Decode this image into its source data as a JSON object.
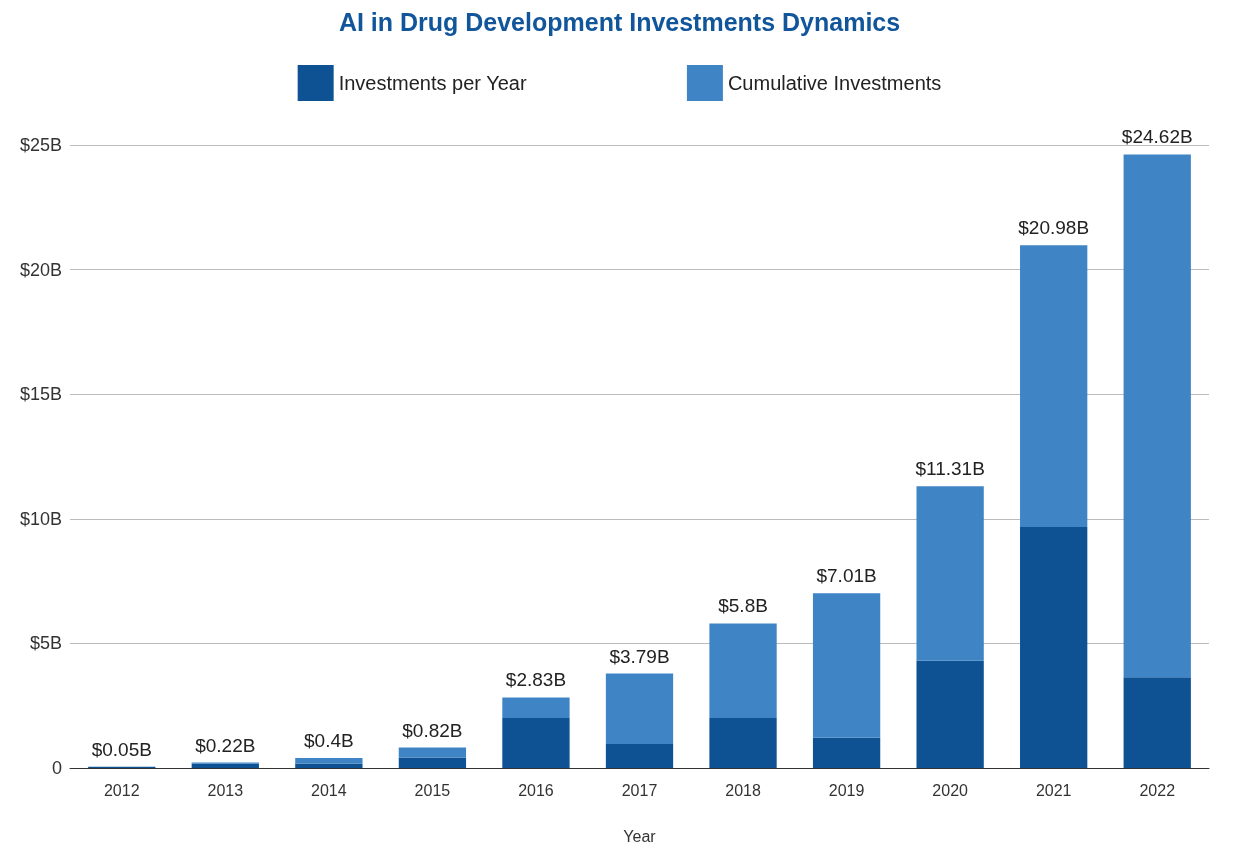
{
  "chart_data": {
    "type": "bar",
    "title": "AI in Drug Development Investments Dynamics",
    "xlabel": "Year",
    "categories": [
      "2012",
      "2013",
      "2014",
      "2015",
      "2016",
      "2017",
      "2018",
      "2019",
      "2020",
      "2021",
      "2022"
    ],
    "stacked": true,
    "series": [
      {
        "name": "Investments per Year",
        "color": "#0e5294",
        "values": [
          0.05,
          0.17,
          0.18,
          0.42,
          2.01,
          0.96,
          2.01,
          1.21,
          4.3,
          9.67,
          3.64
        ]
      },
      {
        "name": "Cumulative Investments",
        "color": "#3f85c6",
        "values": [
          0,
          0.05,
          0.22,
          0.4,
          0.82,
          2.83,
          3.79,
          5.8,
          7.01,
          11.31,
          20.98
        ]
      }
    ],
    "totals": [
      "$0.05B",
      "$0.22B",
      "$0.4B",
      "$0.82B",
      "$2.83B",
      "$3.79B",
      "$5.8B",
      "$7.01B",
      "$11.31B",
      "$20.98B",
      "$24.62B"
    ],
    "ylim": [
      0,
      25
    ],
    "yticks": [
      0,
      {
        "value": 5,
        "label": "$5B"
      },
      {
        "value": 10,
        "label": "$10B"
      },
      {
        "value": 15,
        "label": "$15B"
      },
      {
        "value": 20,
        "label": "$20B"
      },
      {
        "value": 25,
        "label": "$25B"
      }
    ],
    "grid": "y",
    "legend": "top"
  }
}
